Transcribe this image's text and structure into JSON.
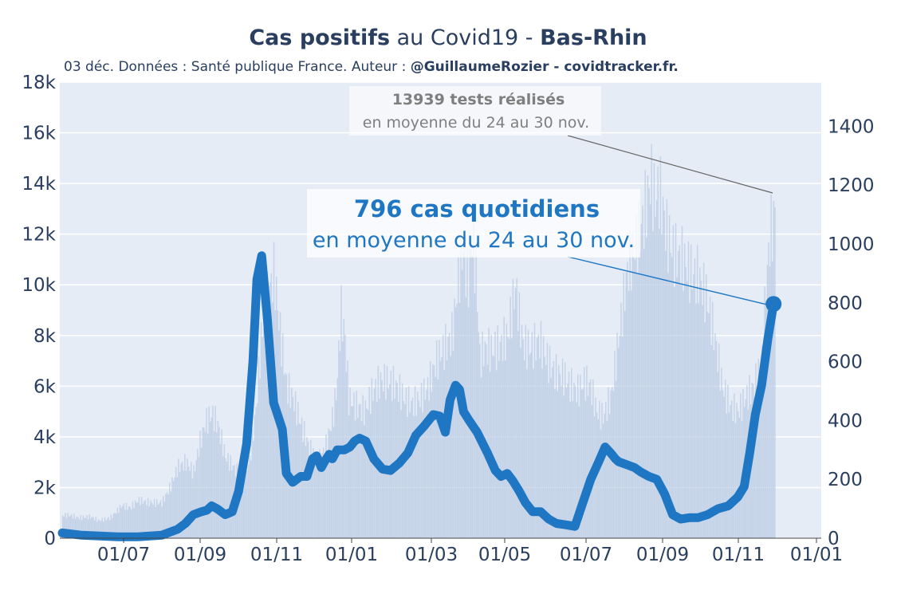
{
  "chart_data": {
    "type": "bar+line",
    "title": {
      "bold": "Cas positifs",
      "mid": " au Covid19 - ",
      "bold2": "Bas-Rhin"
    },
    "subtitle": {
      "text": "03 déc. Données : Santé publique France. Auteur : ",
      "bold": "@GuillaumeRozier - covidtracker.fr."
    },
    "x_ticks": [
      "01/07",
      "01/09",
      "01/11",
      "01/01",
      "01/03",
      "01/05",
      "01/07",
      "01/09",
      "01/11",
      "01/01"
    ],
    "y_left": {
      "ticks": [
        "0",
        "2k",
        "4k",
        "6k",
        "8k",
        "10k",
        "12k",
        "14k",
        "16k",
        "18k"
      ],
      "range": [
        0,
        18000
      ]
    },
    "y_right": {
      "ticks": [
        "0",
        "200",
        "400",
        "600",
        "800",
        "1000",
        "1200",
        "1400"
      ],
      "range": [
        0,
        1550
      ]
    },
    "series": [
      {
        "kind": "bars",
        "axis": "left",
        "color": "#b9cbe3",
        "description_text": "tests réalisés",
        "points": [
          [
            0,
            900
          ],
          [
            10,
            900
          ],
          [
            20,
            800
          ],
          [
            35,
            850
          ],
          [
            45,
            700
          ],
          [
            60,
            800
          ],
          [
            75,
            1300
          ],
          [
            85,
            1200
          ],
          [
            95,
            1500
          ],
          [
            110,
            1400
          ],
          [
            125,
            1400
          ],
          [
            135,
            2000
          ],
          [
            145,
            2800
          ],
          [
            155,
            3000
          ],
          [
            165,
            2600
          ],
          [
            172,
            3700
          ],
          [
            180,
            4600
          ],
          [
            188,
            4900
          ],
          [
            195,
            4500
          ],
          [
            205,
            3200
          ],
          [
            215,
            2800
          ],
          [
            225,
            2400
          ],
          [
            235,
            3000
          ],
          [
            243,
            5000
          ],
          [
            250,
            8000
          ],
          [
            258,
            9500
          ],
          [
            266,
            10500
          ],
          [
            274,
            8000
          ],
          [
            282,
            6000
          ],
          [
            290,
            5500
          ],
          [
            300,
            4500
          ],
          [
            310,
            3600
          ],
          [
            320,
            3000
          ],
          [
            330,
            3500
          ],
          [
            340,
            4800
          ],
          [
            345,
            6000
          ],
          [
            350,
            9000
          ],
          [
            355,
            8000
          ],
          [
            360,
            5500
          ],
          [
            370,
            5200
          ],
          [
            380,
            5000
          ],
          [
            390,
            5800
          ],
          [
            400,
            6200
          ],
          [
            410,
            6200
          ],
          [
            420,
            6000
          ],
          [
            430,
            5500
          ],
          [
            440,
            5300
          ],
          [
            450,
            5500
          ],
          [
            460,
            6000
          ],
          [
            470,
            7000
          ],
          [
            480,
            7500
          ],
          [
            490,
            8000
          ],
          [
            497,
            10000
          ],
          [
            503,
            11500
          ],
          [
            510,
            10000
          ],
          [
            515,
            12000
          ],
          [
            520,
            10500
          ],
          [
            525,
            7000
          ],
          [
            530,
            7500
          ],
          [
            540,
            7400
          ],
          [
            550,
            7600
          ],
          [
            560,
            8000
          ],
          [
            565,
            9000
          ],
          [
            570,
            10000
          ],
          [
            575,
            8500
          ],
          [
            580,
            7600
          ],
          [
            590,
            7500
          ],
          [
            600,
            7800
          ],
          [
            610,
            7000
          ],
          [
            620,
            6500
          ],
          [
            630,
            6400
          ],
          [
            640,
            6000
          ],
          [
            648,
            5800
          ],
          [
            656,
            6200
          ],
          [
            664,
            6000
          ],
          [
            672,
            5000
          ],
          [
            680,
            4800
          ],
          [
            690,
            5600
          ],
          [
            700,
            8000
          ],
          [
            710,
            10500
          ],
          [
            720,
            11500
          ],
          [
            730,
            12500
          ],
          [
            740,
            14200
          ],
          [
            745,
            13300
          ],
          [
            750,
            13800
          ],
          [
            755,
            13000
          ],
          [
            760,
            12000
          ],
          [
            770,
            11200
          ],
          [
            780,
            11000
          ],
          [
            790,
            10500
          ],
          [
            800,
            10300
          ],
          [
            810,
            9500
          ],
          [
            820,
            8000
          ],
          [
            830,
            6000
          ],
          [
            840,
            5200
          ],
          [
            850,
            5000
          ],
          [
            860,
            5600
          ],
          [
            870,
            6000
          ],
          [
            880,
            7000
          ],
          [
            885,
            10000
          ],
          [
            890,
            12000
          ],
          [
            895,
            12500
          ],
          [
            897,
            13900
          ]
        ]
      },
      {
        "kind": "line",
        "axis": "right",
        "name": "cas positifs",
        "color": "#1f77c4",
        "points": [
          [
            0,
            18
          ],
          [
            25,
            10
          ],
          [
            50,
            7
          ],
          [
            70,
            5
          ],
          [
            95,
            5
          ],
          [
            125,
            10
          ],
          [
            145,
            30
          ],
          [
            155,
            50
          ],
          [
            165,
            80
          ],
          [
            175,
            90
          ],
          [
            182,
            95
          ],
          [
            188,
            110
          ],
          [
            195,
            100
          ],
          [
            205,
            80
          ],
          [
            214,
            90
          ],
          [
            222,
            160
          ],
          [
            232,
            320
          ],
          [
            240,
            600
          ],
          [
            245,
            880
          ],
          [
            251,
            960
          ],
          [
            258,
            750
          ],
          [
            266,
            460
          ],
          [
            271,
            420
          ],
          [
            277,
            370
          ],
          [
            282,
            220
          ],
          [
            290,
            190
          ],
          [
            300,
            210
          ],
          [
            308,
            210
          ],
          [
            315,
            270
          ],
          [
            320,
            280
          ],
          [
            326,
            240
          ],
          [
            330,
            260
          ],
          [
            336,
            285
          ],
          [
            340,
            270
          ],
          [
            346,
            300
          ],
          [
            355,
            300
          ],
          [
            362,
            310
          ],
          [
            368,
            330
          ],
          [
            374,
            340
          ],
          [
            382,
            330
          ],
          [
            392,
            270
          ],
          [
            403,
            235
          ],
          [
            413,
            230
          ],
          [
            424,
            255
          ],
          [
            435,
            290
          ],
          [
            445,
            350
          ],
          [
            455,
            380
          ],
          [
            467,
            420
          ],
          [
            475,
            415
          ],
          [
            482,
            360
          ],
          [
            488,
            470
          ],
          [
            495,
            520
          ],
          [
            500,
            505
          ],
          [
            505,
            430
          ],
          [
            512,
            400
          ],
          [
            522,
            360
          ],
          [
            535,
            290
          ],
          [
            545,
            230
          ],
          [
            552,
            210
          ],
          [
            560,
            220
          ],
          [
            567,
            195
          ],
          [
            575,
            160
          ],
          [
            583,
            120
          ],
          [
            592,
            90
          ],
          [
            602,
            90
          ],
          [
            612,
            65
          ],
          [
            622,
            50
          ],
          [
            635,
            45
          ],
          [
            645,
            40
          ],
          [
            655,
            120
          ],
          [
            665,
            200
          ],
          [
            675,
            260
          ],
          [
            683,
            310
          ],
          [
            690,
            290
          ],
          [
            696,
            270
          ],
          [
            700,
            260
          ],
          [
            710,
            250
          ],
          [
            720,
            240
          ],
          [
            728,
            225
          ],
          [
            738,
            210
          ],
          [
            748,
            200
          ],
          [
            758,
            150
          ],
          [
            768,
            80
          ],
          [
            778,
            65
          ],
          [
            790,
            70
          ],
          [
            800,
            70
          ],
          [
            812,
            80
          ],
          [
            825,
            100
          ],
          [
            838,
            110
          ],
          [
            850,
            140
          ],
          [
            858,
            175
          ],
          [
            865,
            290
          ],
          [
            872,
            420
          ],
          [
            880,
            520
          ],
          [
            888,
            680
          ],
          [
            895,
            796
          ]
        ]
      }
    ],
    "annotations": {
      "tests_line1": "13939 tests réalisés",
      "tests_line2": "en moyenne du 24 au 30 nov.",
      "cases_line1": "796 cas quotidiens",
      "cases_line2": "en moyenne du 24 au 30 nov."
    }
  }
}
